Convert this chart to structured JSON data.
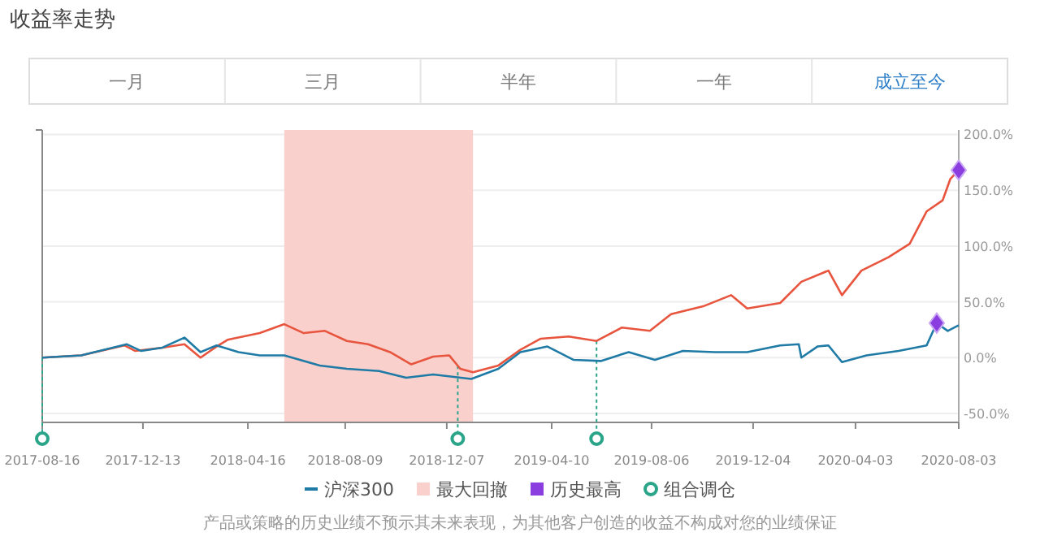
{
  "chart_data": {
    "type": "line",
    "title": "收益率走势",
    "annotations": [
      "一月",
      "三月",
      "半年",
      "一年",
      "成立至今",
      "产品或策略的历史业绩不预示其未来表现，为其他客户创造的收益不构成对您的业绩保证"
    ],
    "xlim": [
      "2017-08-16",
      "2020-08-03"
    ],
    "xticks": [
      "2017-08-16",
      "2017-12-13",
      "2018-04-16",
      "2018-08-09",
      "2018-12-07",
      "2019-04-10",
      "2019-08-06",
      "2019-12-04",
      "2020-04-03",
      "2020-08-03"
    ],
    "ylim": [
      -58,
      204
    ],
    "yticks": [
      {
        "value": -50,
        "label": "-50.0%"
      },
      {
        "value": 0,
        "label": "0.0%"
      },
      {
        "value": 50,
        "label": "50.0%"
      },
      {
        "value": 100,
        "label": "100.0%"
      },
      {
        "value": 150,
        "label": "150.0%"
      },
      {
        "value": 200,
        "label": "200.0%"
      }
    ],
    "grid": "y",
    "legend": "bottom",
    "series": [
      {
        "color": "#e8553e",
        "x": [
          "2017-08-16",
          "2017-10-01",
          "2017-11-21",
          "2017-12-04",
          "2018-01-05",
          "2018-01-31",
          "2018-02-19",
          "2018-03-10",
          "2018-03-23",
          "2018-04-30",
          "2018-05-29",
          "2018-06-21",
          "2018-07-16",
          "2018-08-11",
          "2018-09-05",
          "2018-10-01",
          "2018-10-26",
          "2018-11-21",
          "2018-12-10",
          "2018-12-23",
          "2019-01-07",
          "2019-02-06",
          "2019-03-04",
          "2019-03-28",
          "2019-04-30",
          "2019-06-02",
          "2019-07-02",
          "2019-08-04",
          "2019-08-29",
          "2019-10-06",
          "2019-11-08",
          "2019-11-27",
          "2020-01-05",
          "2020-01-30",
          "2020-03-02",
          "2020-03-18",
          "2020-04-10",
          "2020-05-12",
          "2020-06-06",
          "2020-06-26",
          "2020-07-15",
          "2020-07-24",
          "2020-08-03"
        ],
        "values": [
          0,
          2,
          11,
          6,
          9,
          12,
          0,
          10,
          16,
          22,
          30,
          22,
          24,
          15,
          12,
          5,
          -6,
          1,
          2,
          -10,
          -13,
          -7,
          7,
          17,
          19,
          15,
          27,
          24,
          39,
          46,
          56,
          44,
          49,
          68,
          78,
          56,
          78,
          90,
          102,
          131,
          141,
          160,
          168
        ]
      },
      {
        "name": "沪深300",
        "color": "#1f7ba6",
        "x": [
          "2017-08-16",
          "2017-10-01",
          "2017-11-24",
          "2017-12-11",
          "2018-01-05",
          "2018-01-31",
          "2018-02-19",
          "2018-03-10",
          "2018-04-05",
          "2018-04-30",
          "2018-05-29",
          "2018-07-10",
          "2018-08-11",
          "2018-09-18",
          "2018-10-20",
          "2018-11-21",
          "2019-01-05",
          "2019-02-06",
          "2019-03-04",
          "2019-04-05",
          "2019-05-06",
          "2019-06-07",
          "2019-07-10",
          "2019-08-10",
          "2019-09-12",
          "2019-10-20",
          "2019-11-27",
          "2020-01-05",
          "2020-01-27",
          "2020-01-30",
          "2020-02-18",
          "2020-03-02",
          "2020-03-18",
          "2020-04-16",
          "2020-05-24",
          "2020-06-26",
          "2020-07-08",
          "2020-07-21",
          "2020-08-03"
        ],
        "values": [
          0,
          2,
          12,
          6,
          9,
          18,
          5,
          11,
          5,
          2,
          2,
          -7,
          -10,
          -12,
          -18,
          -15,
          -19,
          -10,
          5,
          10,
          -2,
          -3,
          5,
          -2,
          6,
          5,
          5,
          11,
          12,
          0,
          10,
          11,
          -4,
          2,
          6,
          11,
          31,
          24,
          29
        ]
      },
      {
        "name": "历史最高",
        "type": "scatter",
        "marker": "diamond",
        "color": "#8a3ee0",
        "x": [
          "2020-07-08",
          "2020-08-03"
        ],
        "values": [
          31,
          168
        ]
      }
    ],
    "bands": [
      {
        "axis": "x",
        "from": "2018-05-29",
        "to": "2019-01-07",
        "label": "最大回撤",
        "color": "#f9d0cc"
      }
    ],
    "ref_lines": [
      {
        "axis": "x",
        "value": "2017-08-16",
        "label": "组合调仓",
        "color": "#2aa58a",
        "line_style": "dotted"
      },
      {
        "axis": "x",
        "value": "2018-12-20",
        "color": "#2aa58a",
        "line_style": "dotted"
      },
      {
        "axis": "x",
        "value": "2019-06-02",
        "color": "#2aa58a",
        "line_style": "dotted"
      }
    ]
  }
}
